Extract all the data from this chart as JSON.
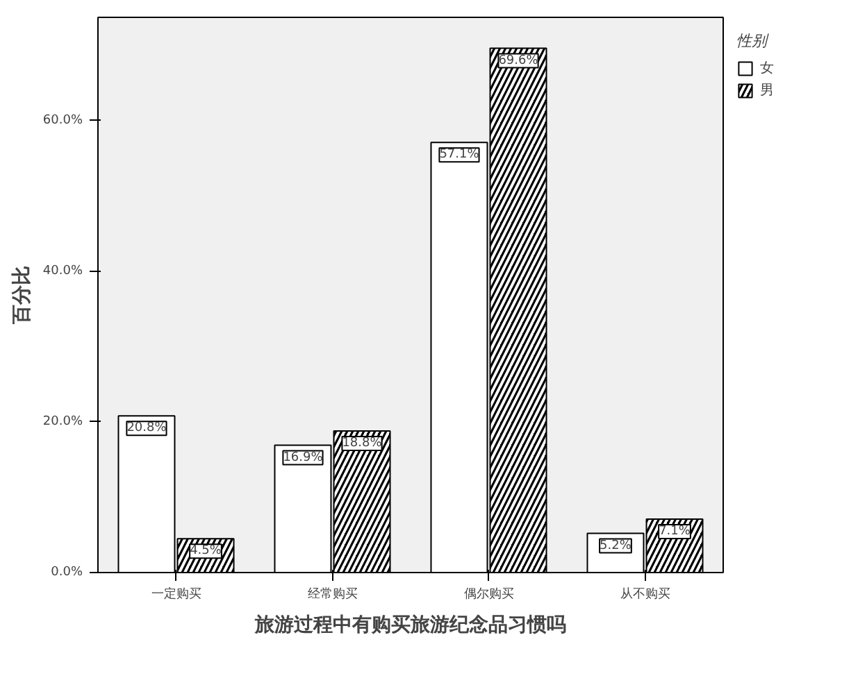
{
  "chart_data": {
    "type": "bar",
    "xlabel": "旅游过程中有购买旅游纪念品习惯吗",
    "ylabel": "百分比",
    "legend_title": "性别",
    "categories": [
      "一定购买",
      "经常购买",
      "偶尔购买",
      "从不购买"
    ],
    "series": [
      {
        "name": "女",
        "color": "#ffffff",
        "values": [
          20.8,
          16.9,
          57.1,
          5.2
        ],
        "value_labels": [
          "20.8%",
          "16.9%",
          "57.1%",
          "5.2%"
        ]
      },
      {
        "name": "男",
        "color": "#000000",
        "values": [
          4.5,
          18.8,
          69.6,
          7.1
        ],
        "value_labels": [
          "4.5%",
          "18.8%",
          "69.6%",
          "7.1%"
        ]
      }
    ],
    "ylim": [
      0,
      73.7
    ],
    "yticks": [
      {
        "value": 0,
        "label": "0.0%"
      },
      {
        "value": 20,
        "label": "20.0%"
      },
      {
        "value": 40,
        "label": "40.0%"
      },
      {
        "value": 60,
        "label": "60.0%"
      }
    ],
    "grid": false,
    "legend": "top right"
  }
}
